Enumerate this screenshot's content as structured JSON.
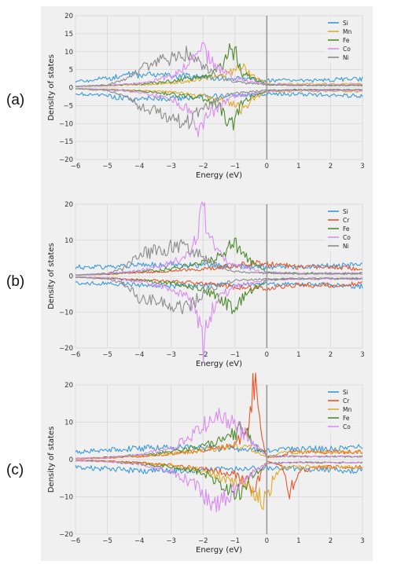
{
  "chart_data": [
    {
      "type": "line",
      "panel_label": "(a)",
      "xlabel": "Energy (eV)",
      "ylabel": "Density of states",
      "xlim": [
        -6,
        3
      ],
      "ylim": [
        -20,
        20
      ],
      "xticks": [
        -6,
        -5,
        -4,
        -3,
        -2,
        -1,
        0,
        1,
        2,
        3
      ],
      "yticks": [
        -20,
        -15,
        -10,
        -5,
        0,
        5,
        10,
        15,
        20
      ],
      "fermi_level": 0,
      "grid": true,
      "legend": "top-right",
      "series": [
        {
          "name": "Si",
          "color": "#3a9ad9",
          "energy": [
            -6,
            -5,
            -4.5,
            -4,
            -3,
            -2.5,
            -2,
            -1.5,
            -1,
            0,
            1,
            2,
            3
          ],
          "up": [
            1.8,
            2.5,
            3.5,
            3.5,
            3.3,
            3.2,
            2.8,
            2.6,
            2.5,
            2.0,
            2.0,
            2.2,
            2.5
          ],
          "down": [
            -1.6,
            -2.2,
            -3.0,
            -3.0,
            -3.0,
            -2.8,
            -2.5,
            -2.4,
            -2.2,
            -1.8,
            -1.9,
            -2.1,
            -2.3
          ]
        },
        {
          "name": "Mn",
          "color": "#e0a92a",
          "energy": [
            -6,
            -5,
            -4,
            -3,
            -2.5,
            -2,
            -1.5,
            -1,
            -0.7,
            -0.5,
            0,
            1,
            2,
            3
          ],
          "up": [
            0.3,
            0.5,
            0.8,
            1.2,
            1.8,
            2.5,
            3.5,
            4.5,
            6.5,
            3.5,
            1.0,
            1.0,
            1.0,
            1.0
          ],
          "down": [
            -0.3,
            -0.5,
            -0.8,
            -1.2,
            -1.8,
            -2.5,
            -3.5,
            -4.5,
            -6.5,
            -3.5,
            -1.0,
            -1.0,
            -1.0,
            -1.0
          ]
        },
        {
          "name": "Fe",
          "color": "#4f8a2f",
          "energy": [
            -6,
            -5,
            -4,
            -3,
            -2,
            -1.5,
            -1.2,
            -1,
            -0.8,
            0,
            1,
            2,
            3
          ],
          "up": [
            0.3,
            0.6,
            1.0,
            1.8,
            3.0,
            5.0,
            9.5,
            10.5,
            4.0,
            0.8,
            0.6,
            0.6,
            0.6
          ],
          "down": [
            -0.3,
            -0.6,
            -1.0,
            -1.8,
            -3.0,
            -5.0,
            -9.5,
            -10.5,
            -4.0,
            -0.8,
            -0.6,
            -0.6,
            -0.6
          ]
        },
        {
          "name": "Co",
          "color": "#d98cf0",
          "energy": [
            -6,
            -5,
            -4,
            -3,
            -2.5,
            -2.2,
            -2,
            -1.8,
            -1.5,
            -1,
            0,
            1,
            2,
            3
          ],
          "up": [
            0.3,
            0.6,
            1.2,
            3.0,
            6.0,
            11.0,
            10.0,
            8.0,
            5.0,
            2.5,
            1.0,
            0.8,
            0.8,
            0.8
          ],
          "down": [
            -0.3,
            -0.6,
            -1.2,
            -3.0,
            -6.0,
            -11.0,
            -10.0,
            -8.0,
            -5.0,
            -2.5,
            -1.0,
            -0.8,
            -0.8,
            -0.8
          ]
        },
        {
          "name": "Ni",
          "color": "#8c8c8c",
          "energy": [
            -6,
            -5,
            -4.5,
            -4,
            -3.5,
            -3,
            -2.5,
            -2,
            -1.5,
            -1,
            0,
            1,
            2,
            3
          ],
          "up": [
            0.3,
            0.8,
            2.0,
            5.0,
            6.5,
            8.5,
            10.0,
            6.0,
            3.0,
            1.5,
            0.8,
            0.6,
            0.6,
            0.6
          ],
          "down": [
            -0.3,
            -0.8,
            -2.0,
            -5.0,
            -6.5,
            -8.5,
            -10.0,
            -6.0,
            -3.0,
            -1.5,
            -0.8,
            -0.6,
            -0.6,
            -0.6
          ]
        }
      ]
    },
    {
      "type": "line",
      "panel_label": "(b)",
      "xlabel": "Energy (eV)",
      "ylabel": "Density of states",
      "xlim": [
        -6,
        3
      ],
      "ylim": [
        -20,
        20
      ],
      "xticks": [
        -6,
        -5,
        -4,
        -3,
        -2,
        -1,
        0,
        1,
        2,
        3
      ],
      "yticks": [
        -20,
        -10,
        0,
        10,
        20
      ],
      "fermi_level": 0,
      "grid": true,
      "legend": "top-right",
      "series": [
        {
          "name": "Si",
          "color": "#3a9ad9",
          "energy": [
            -6,
            -5,
            -4,
            -3,
            -2,
            -1,
            0,
            1,
            2,
            3
          ],
          "up": [
            2.5,
            2.5,
            3.0,
            3.2,
            3.0,
            2.8,
            2.5,
            2.5,
            2.8,
            3.0
          ],
          "down": [
            -2.0,
            -2.0,
            -2.5,
            -2.8,
            -2.6,
            -2.4,
            -2.2,
            -2.2,
            -2.5,
            -2.8
          ]
        },
        {
          "name": "Cr",
          "color": "#e8552a",
          "energy": [
            -6,
            -5,
            -4,
            -3,
            -2,
            -1.5,
            -1,
            -0.5,
            0,
            0.5,
            1,
            2,
            3
          ],
          "up": [
            0.3,
            0.5,
            1.0,
            1.5,
            2.0,
            2.5,
            3.0,
            3.5,
            3.5,
            3.0,
            2.5,
            2.5,
            2.0
          ],
          "down": [
            -0.3,
            -0.5,
            -1.0,
            -1.5,
            -2.0,
            -2.5,
            -3.0,
            -3.5,
            -3.5,
            -3.0,
            -2.5,
            -2.5,
            -2.0
          ]
        },
        {
          "name": "Fe",
          "color": "#4f8a2f",
          "energy": [
            -6,
            -5,
            -4,
            -3,
            -2,
            -1.5,
            -1,
            -0.5,
            0,
            1,
            2,
            3
          ],
          "up": [
            0.3,
            0.6,
            1.2,
            2.0,
            3.5,
            6.0,
            9.0,
            4.0,
            1.0,
            0.8,
            0.8,
            0.8
          ],
          "down": [
            -0.3,
            -0.6,
            -1.2,
            -2.0,
            -3.5,
            -6.0,
            -9.0,
            -4.0,
            -1.0,
            -0.8,
            -0.8,
            -0.8
          ]
        },
        {
          "name": "Co",
          "color": "#d98cf0",
          "energy": [
            -6,
            -5,
            -4,
            -3,
            -2.5,
            -2.2,
            -2,
            -1.8,
            -1.5,
            -1,
            0,
            1,
            2,
            3
          ],
          "up": [
            0.3,
            0.6,
            1.5,
            3.5,
            6.0,
            10.0,
            20.0,
            11.0,
            6.0,
            3.0,
            1.0,
            0.8,
            0.8,
            0.8
          ],
          "down": [
            -0.3,
            -0.6,
            -1.5,
            -3.5,
            -6.0,
            -10.0,
            -20.0,
            -11.0,
            -6.0,
            -3.0,
            -1.0,
            -0.8,
            -0.8,
            -0.8
          ]
        },
        {
          "name": "Ni",
          "color": "#8c8c8c",
          "energy": [
            -6,
            -5,
            -4.5,
            -4,
            -3.5,
            -3,
            -2.5,
            -2,
            -1.5,
            -1,
            0,
            1,
            2,
            3
          ],
          "up": [
            0.3,
            0.8,
            2.0,
            6.0,
            7.0,
            8.0,
            9.0,
            5.0,
            2.5,
            1.2,
            0.8,
            0.6,
            0.6,
            0.6
          ],
          "down": [
            -0.3,
            -0.8,
            -2.0,
            -6.0,
            -7.0,
            -8.0,
            -9.0,
            -5.0,
            -2.5,
            -1.2,
            -0.8,
            -0.6,
            -0.6,
            -0.6
          ]
        }
      ]
    },
    {
      "type": "line",
      "panel_label": "(c)",
      "xlabel": "Energy (eV)",
      "ylabel": "Density of states",
      "xlim": [
        -6,
        3
      ],
      "ylim": [
        -20,
        20
      ],
      "xticks": [
        -6,
        -5,
        -4,
        -3,
        -2,
        -1,
        0,
        1,
        2,
        3
      ],
      "yticks": [
        -20,
        -10,
        0,
        10,
        20
      ],
      "fermi_level": 0,
      "grid": true,
      "legend": "top-right",
      "series": [
        {
          "name": "Si",
          "color": "#3a9ad9",
          "energy": [
            -6,
            -5,
            -4,
            -3,
            -2,
            -1,
            0,
            1,
            2,
            3
          ],
          "up": [
            2.0,
            2.5,
            3.0,
            3.5,
            3.0,
            2.8,
            2.5,
            2.8,
            3.0,
            3.2
          ],
          "down": [
            -2.0,
            -2.5,
            -3.0,
            -3.0,
            -2.8,
            -2.5,
            -2.2,
            -2.5,
            -2.8,
            -3.0
          ]
        },
        {
          "name": "Cr",
          "color": "#e8552a",
          "energy": [
            -6,
            -5,
            -4,
            -3,
            -2,
            -1,
            -0.6,
            -0.4,
            -0.3,
            -0.1,
            0,
            0.5,
            0.7,
            1,
            2,
            3
          ],
          "up": [
            0.2,
            0.4,
            0.8,
            1.5,
            2.5,
            4.0,
            8.0,
            21.0,
            15.0,
            3.0,
            0.5,
            1.0,
            2.0,
            2.0,
            2.0,
            2.0
          ],
          "down": [
            -0.2,
            -0.4,
            -0.8,
            -1.5,
            -2.5,
            -4.0,
            -6.0,
            -8.0,
            -6.0,
            -2.0,
            -0.5,
            -2.0,
            -9.0,
            -3.0,
            -2.0,
            -2.0
          ]
        },
        {
          "name": "Mn",
          "color": "#e0a92a",
          "energy": [
            -6,
            -5,
            -4,
            -3,
            -2,
            -1,
            -0.5,
            -0.2,
            0,
            0.2,
            0.5,
            1,
            2,
            3
          ],
          "up": [
            0.3,
            0.5,
            1.0,
            1.5,
            2.5,
            3.5,
            3.0,
            1.5,
            0.5,
            0.8,
            2.0,
            2.0,
            2.0,
            2.0
          ],
          "down": [
            -0.3,
            -0.5,
            -1.0,
            -1.5,
            -3.0,
            -6.0,
            -8.0,
            -10.0,
            -12.0,
            -5.0,
            -2.0,
            -2.0,
            -2.0,
            -2.0
          ]
        },
        {
          "name": "Fe",
          "color": "#4f8a2f",
          "energy": [
            -6,
            -5,
            -4,
            -3,
            -2,
            -1.5,
            -1,
            -0.7,
            -0.5,
            0,
            1,
            2,
            3
          ],
          "up": [
            0.3,
            0.6,
            1.2,
            2.0,
            3.5,
            5.0,
            7.0,
            9.0,
            5.0,
            1.0,
            0.8,
            0.8,
            0.8
          ],
          "down": [
            -0.3,
            -0.6,
            -1.2,
            -2.0,
            -3.5,
            -6.0,
            -9.0,
            -8.0,
            -5.0,
            -1.0,
            -0.8,
            -0.8,
            -0.8
          ]
        },
        {
          "name": "Co",
          "color": "#d98cf0",
          "energy": [
            -6,
            -5,
            -4,
            -3,
            -2.5,
            -2,
            -1.7,
            -1.5,
            -1,
            -0.5,
            0,
            1,
            2,
            3
          ],
          "up": [
            0.3,
            0.6,
            1.2,
            3.0,
            5.5,
            9.0,
            13.0,
            11.0,
            9.5,
            5.0,
            1.0,
            0.8,
            0.8,
            0.8
          ],
          "down": [
            -0.3,
            -0.6,
            -1.2,
            -3.0,
            -5.5,
            -9.0,
            -12.0,
            -11.0,
            -8.0,
            -4.0,
            -1.0,
            -0.8,
            -0.8,
            -0.8
          ]
        }
      ]
    }
  ]
}
